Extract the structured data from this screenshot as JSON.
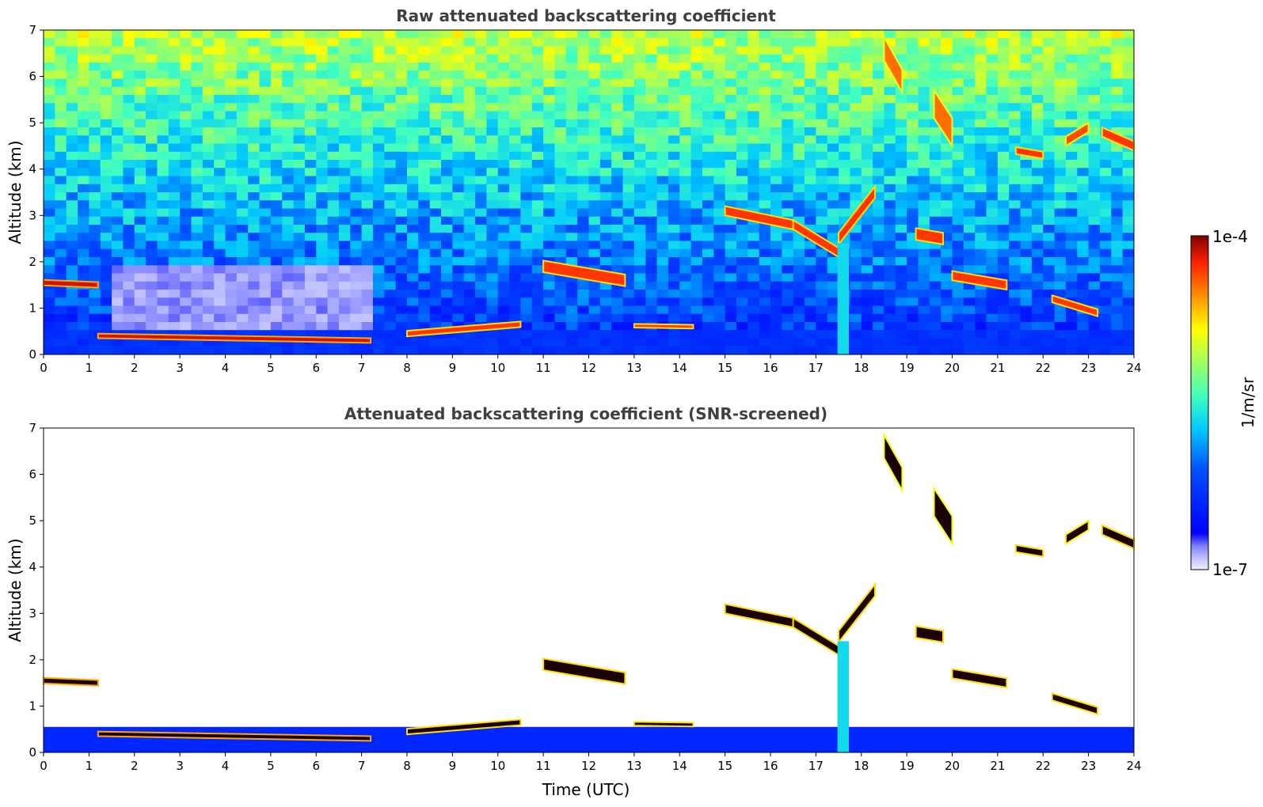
{
  "chart_data": [
    {
      "type": "heatmap",
      "title": "Raw attenuated backscattering coefficient",
      "xlabel": "",
      "ylabel": "Altitude (km)",
      "xlim": [
        0,
        24
      ],
      "ylim": [
        0,
        7
      ],
      "xticks": [
        "0",
        "1",
        "2",
        "3",
        "4",
        "5",
        "6",
        "7",
        "8",
        "9",
        "10",
        "11",
        "12",
        "13",
        "14",
        "15",
        "16",
        "17",
        "18",
        "19",
        "20",
        "21",
        "22",
        "23",
        "24"
      ],
      "yticks": [
        "0",
        "1",
        "2",
        "3",
        "4",
        "5",
        "6",
        "7"
      ],
      "screened": false,
      "features": [
        {
          "kind": "layer",
          "x": [
            0.0,
            1.2
          ],
          "y": [
            1.55,
            1.5
          ],
          "thickness": 0.12,
          "level": 0.95
        },
        {
          "kind": "layer",
          "x": [
            1.2,
            7.2
          ],
          "y": [
            0.4,
            0.3
          ],
          "thickness": 0.1,
          "level": 0.95
        },
        {
          "kind": "layer",
          "x": [
            8.0,
            10.5
          ],
          "y": [
            0.45,
            0.65
          ],
          "thickness": 0.12,
          "level": 0.9
        },
        {
          "kind": "layer",
          "x": [
            11.0,
            12.8
          ],
          "y": [
            1.9,
            1.6
          ],
          "thickness": 0.25,
          "level": 0.9
        },
        {
          "kind": "layer",
          "x": [
            13.0,
            14.3
          ],
          "y": [
            0.62,
            0.6
          ],
          "thickness": 0.08,
          "level": 0.9
        },
        {
          "kind": "layer",
          "x": [
            15.0,
            16.5
          ],
          "y": [
            3.1,
            2.8
          ],
          "thickness": 0.2,
          "level": 0.9
        },
        {
          "kind": "layer",
          "x": [
            16.5,
            17.5
          ],
          "y": [
            2.8,
            2.2
          ],
          "thickness": 0.2,
          "level": 0.9
        },
        {
          "kind": "layer",
          "x": [
            17.5,
            18.3
          ],
          "y": [
            2.5,
            3.5
          ],
          "thickness": 0.25,
          "level": 0.9
        },
        {
          "kind": "layer",
          "x": [
            18.5,
            18.9
          ],
          "y": [
            6.6,
            5.9
          ],
          "thickness": 0.5,
          "level": 0.85
        },
        {
          "kind": "layer",
          "x": [
            19.6,
            20.0
          ],
          "y": [
            5.4,
            4.8
          ],
          "thickness": 0.6,
          "level": 0.85
        },
        {
          "kind": "layer",
          "x": [
            19.2,
            19.8
          ],
          "y": [
            2.6,
            2.5
          ],
          "thickness": 0.25,
          "level": 0.9
        },
        {
          "kind": "layer",
          "x": [
            20.0,
            21.2
          ],
          "y": [
            1.7,
            1.5
          ],
          "thickness": 0.2,
          "level": 0.9
        },
        {
          "kind": "layer",
          "x": [
            21.4,
            22.0
          ],
          "y": [
            4.4,
            4.3
          ],
          "thickness": 0.15,
          "level": 0.9
        },
        {
          "kind": "layer",
          "x": [
            22.2,
            23.2
          ],
          "y": [
            1.2,
            0.9
          ],
          "thickness": 0.15,
          "level": 0.9
        },
        {
          "kind": "layer",
          "x": [
            22.5,
            23.0
          ],
          "y": [
            4.6,
            4.9
          ],
          "thickness": 0.2,
          "level": 0.88
        },
        {
          "kind": "layer",
          "x": [
            23.3,
            24.0
          ],
          "y": [
            4.8,
            4.5
          ],
          "thickness": 0.2,
          "level": 0.9
        },
        {
          "kind": "column",
          "x": 17.6,
          "ybottom": 0,
          "ytop": 2.4,
          "width": 0.25,
          "level": 0.45
        }
      ]
    },
    {
      "type": "heatmap",
      "title": "Attenuated backscattering coefficient (SNR-screened)",
      "xlabel": "Time (UTC)",
      "ylabel": "Altitude (km)",
      "xlim": [
        0,
        24
      ],
      "ylim": [
        0,
        7
      ],
      "xticks": [
        "0",
        "1",
        "2",
        "3",
        "4",
        "5",
        "6",
        "7",
        "8",
        "9",
        "10",
        "11",
        "12",
        "13",
        "14",
        "15",
        "16",
        "17",
        "18",
        "19",
        "20",
        "21",
        "22",
        "23",
        "24"
      ],
      "yticks": [
        "0",
        "1",
        "2",
        "3",
        "4",
        "5",
        "6",
        "7"
      ],
      "screened": true,
      "features": [
        {
          "kind": "layer",
          "x": [
            0.0,
            1.2
          ],
          "y": [
            1.55,
            1.5
          ],
          "thickness": 0.12,
          "level": 0.95
        },
        {
          "kind": "layer",
          "x": [
            1.2,
            7.2
          ],
          "y": [
            0.4,
            0.3
          ],
          "thickness": 0.1,
          "level": 0.95
        },
        {
          "kind": "layer",
          "x": [
            8.0,
            10.5
          ],
          "y": [
            0.45,
            0.65
          ],
          "thickness": 0.12,
          "level": 0.9
        },
        {
          "kind": "layer",
          "x": [
            11.0,
            12.8
          ],
          "y": [
            1.9,
            1.6
          ],
          "thickness": 0.25,
          "level": 0.9
        },
        {
          "kind": "layer",
          "x": [
            13.0,
            14.3
          ],
          "y": [
            0.62,
            0.6
          ],
          "thickness": 0.08,
          "level": 0.9
        },
        {
          "kind": "layer",
          "x": [
            15.0,
            16.5
          ],
          "y": [
            3.1,
            2.8
          ],
          "thickness": 0.2,
          "level": 0.9
        },
        {
          "kind": "layer",
          "x": [
            16.5,
            17.5
          ],
          "y": [
            2.8,
            2.2
          ],
          "thickness": 0.2,
          "level": 0.9
        },
        {
          "kind": "layer",
          "x": [
            17.5,
            18.3
          ],
          "y": [
            2.5,
            3.5
          ],
          "thickness": 0.25,
          "level": 0.9
        },
        {
          "kind": "layer",
          "x": [
            18.5,
            18.9
          ],
          "y": [
            6.6,
            5.9
          ],
          "thickness": 0.5,
          "level": 0.85
        },
        {
          "kind": "layer",
          "x": [
            19.6,
            20.0
          ],
          "y": [
            5.4,
            4.8
          ],
          "thickness": 0.6,
          "level": 0.85
        },
        {
          "kind": "layer",
          "x": [
            19.2,
            19.8
          ],
          "y": [
            2.6,
            2.5
          ],
          "thickness": 0.25,
          "level": 0.9
        },
        {
          "kind": "layer",
          "x": [
            20.0,
            21.2
          ],
          "y": [
            1.7,
            1.5
          ],
          "thickness": 0.2,
          "level": 0.9
        },
        {
          "kind": "layer",
          "x": [
            21.4,
            22.0
          ],
          "y": [
            4.4,
            4.3
          ],
          "thickness": 0.15,
          "level": 0.9
        },
        {
          "kind": "layer",
          "x": [
            22.2,
            23.2
          ],
          "y": [
            1.2,
            0.9
          ],
          "thickness": 0.15,
          "level": 0.9
        },
        {
          "kind": "layer",
          "x": [
            22.5,
            23.0
          ],
          "y": [
            4.6,
            4.9
          ],
          "thickness": 0.2,
          "level": 0.88
        },
        {
          "kind": "layer",
          "x": [
            23.3,
            24.0
          ],
          "y": [
            4.8,
            4.5
          ],
          "thickness": 0.2,
          "level": 0.9
        },
        {
          "kind": "column",
          "x": 17.6,
          "ybottom": 0,
          "ytop": 2.4,
          "width": 0.25,
          "level": 0.45
        }
      ]
    }
  ],
  "colorbar": {
    "label": "1/m/sr",
    "max_label": "1e-4",
    "min_label": "1e-7",
    "colormap": "jet",
    "scale": "log"
  }
}
